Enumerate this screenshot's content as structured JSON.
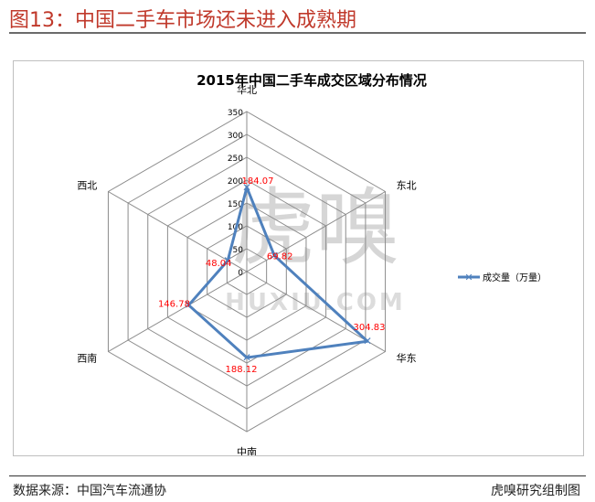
{
  "header": {
    "title": "图13：中国二手车市场还未进入成熟期"
  },
  "footer": {
    "source": "数据来源：中国汽车流通协",
    "credit": "虎嗅研究组制图"
  },
  "watermark": {
    "main": "虎嗅",
    "sub": "HUXIU.COM"
  },
  "chart_data": {
    "type": "radar",
    "title": "2015年中国二手车成交区域分布情况",
    "categories": [
      "华北",
      "东北",
      "华东",
      "中南",
      "西南",
      "西北"
    ],
    "ticks": [
      0,
      50,
      100,
      150,
      200,
      250,
      300,
      350
    ],
    "range": [
      0,
      350
    ],
    "legend_position": "right",
    "series": [
      {
        "name": "成交量（万量）",
        "values": [
          184.07,
          69.82,
          304.83,
          188.12,
          146.78,
          48.04
        ],
        "labels": [
          "184.07",
          "69.82",
          "304.83",
          "188.12",
          "146.78",
          "48.04"
        ],
        "color": "#4f81bd",
        "label_color": "#ff0000"
      }
    ]
  }
}
